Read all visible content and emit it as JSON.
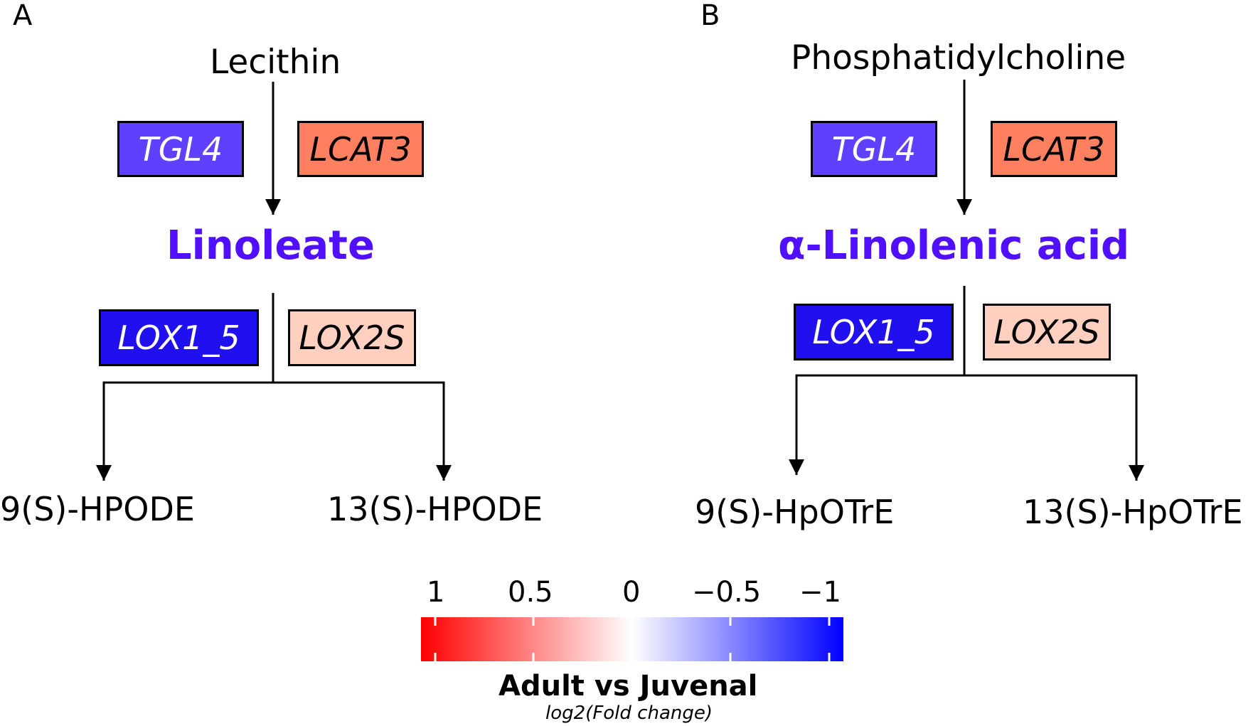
{
  "panels": [
    {
      "label": "A",
      "substrate": "Lecithin",
      "product": "Linoleate",
      "genes_top": [
        {
          "name": "TGL4",
          "fill": "#6040ff",
          "text_color": "#ffffff"
        },
        {
          "name": "LCAT3",
          "fill": "#ff8060",
          "text_color": "#000000"
        }
      ],
      "genes_bottom": [
        {
          "name": "LOX1_5",
          "fill": "#2010f0",
          "text_color": "#ffffff"
        },
        {
          "name": "LOX2S",
          "fill": "#ffd0c0",
          "text_color": "#000000"
        }
      ],
      "outputs": [
        "9(S)-HPODE",
        "13(S)-HPODE"
      ]
    },
    {
      "label": "B",
      "substrate": "Phosphatidylcholine",
      "product": "α-Linolenic acid",
      "genes_top": [
        {
          "name": "TGL4",
          "fill": "#6040ff",
          "text_color": "#ffffff"
        },
        {
          "name": "LCAT3",
          "fill": "#ff8060",
          "text_color": "#000000"
        }
      ],
      "genes_bottom": [
        {
          "name": "LOX1_5",
          "fill": "#2010f0",
          "text_color": "#ffffff"
        },
        {
          "name": "LOX2S",
          "fill": "#ffd0c0",
          "text_color": "#000000"
        }
      ],
      "outputs": [
        "9(S)-HpOTrE",
        "13(S)-HpOTrE"
      ]
    }
  ],
  "product_color": "#5010ff",
  "legend": {
    "ticks": [
      "1",
      "0.5",
      "0",
      "−0.5",
      "−1"
    ],
    "tick_values": [
      1,
      0.5,
      0,
      -0.5,
      -1
    ],
    "title": "Adult vs Juvenal",
    "subtitle": "log2(Fold change)",
    "gradient": [
      "#ff0000",
      "#ffffff",
      "#0000ff"
    ]
  }
}
